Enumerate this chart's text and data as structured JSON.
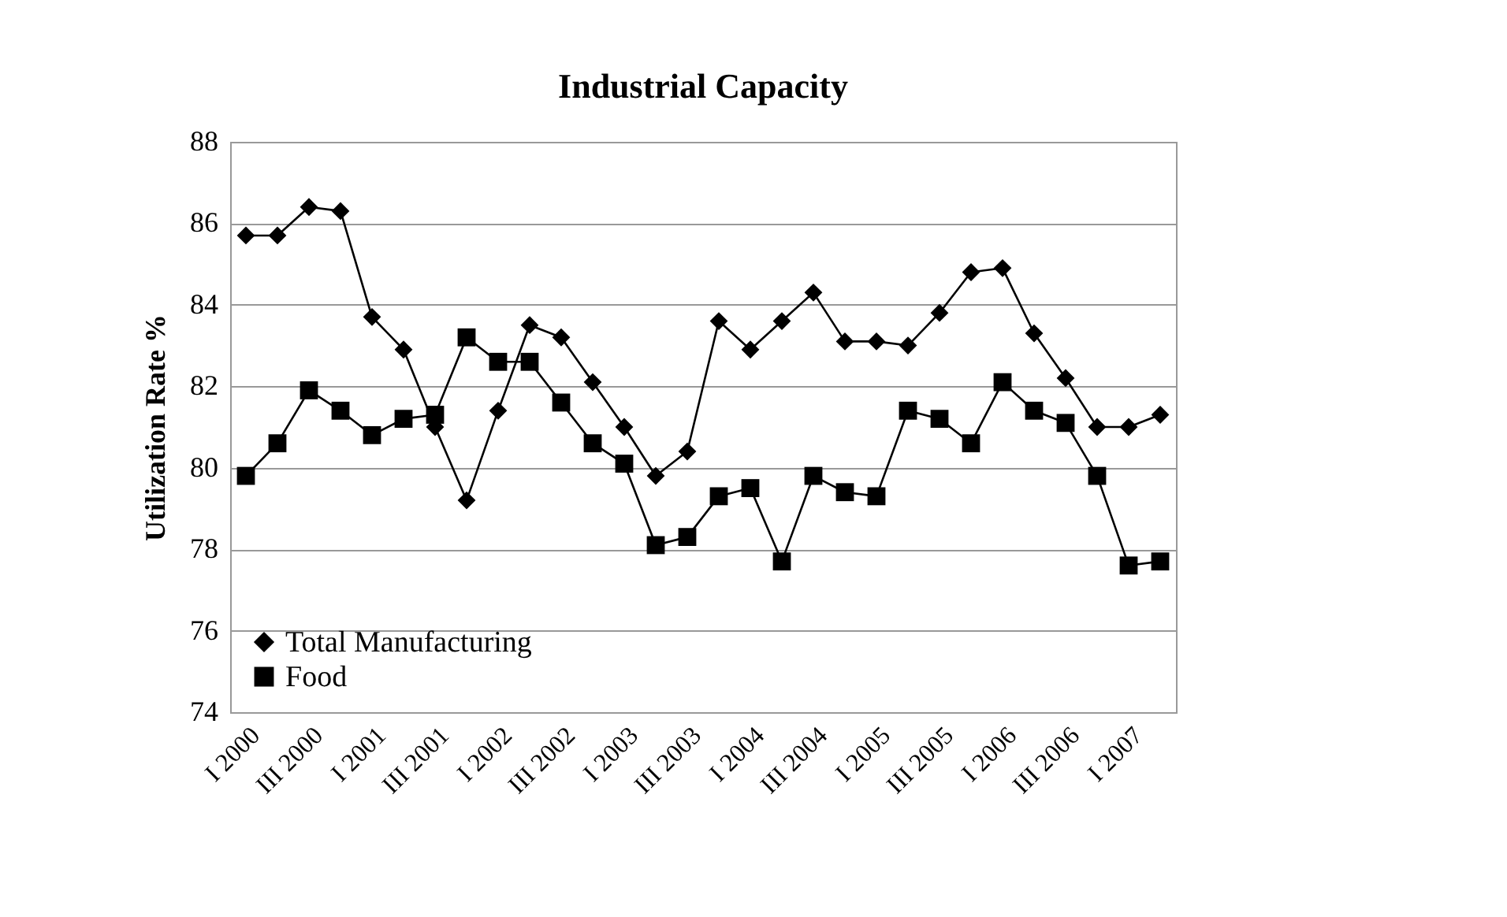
{
  "chart_data": {
    "type": "line",
    "title": "Industrial Capacity",
    "ylabel": "Utilization Rate %",
    "categories": [
      "I 2000",
      null,
      "III 2000",
      null,
      "I 2001",
      null,
      "III 2001",
      null,
      "I 2002",
      null,
      "III 2002",
      null,
      "I 2003",
      null,
      "III 2003",
      null,
      "I 2004",
      null,
      "III 2004",
      null,
      "I 2005",
      null,
      "III 2005",
      null,
      "I 2006",
      null,
      "III 2006",
      null,
      "I 2007",
      null
    ],
    "series": [
      {
        "name": "Total Manufacturing",
        "color": "#000000",
        "marker": "diamond",
        "values": [
          85.7,
          85.7,
          86.4,
          86.3,
          83.7,
          82.9,
          81.0,
          79.2,
          81.4,
          83.5,
          83.2,
          82.1,
          81.0,
          79.8,
          80.4,
          83.6,
          82.9,
          83.6,
          84.3,
          83.1,
          83.1,
          83.0,
          83.8,
          84.8,
          84.9,
          83.3,
          82.2,
          81.0,
          81.0,
          81.3
        ]
      },
      {
        "name": "Food",
        "color": "#000000",
        "marker": "square",
        "values": [
          79.8,
          80.6,
          81.9,
          81.4,
          80.8,
          81.2,
          81.3,
          83.2,
          82.6,
          82.6,
          81.6,
          80.6,
          80.1,
          78.1,
          78.3,
          79.3,
          79.5,
          77.7,
          79.8,
          79.4,
          79.3,
          81.4,
          81.2,
          80.6,
          82.1,
          81.4,
          81.1,
          79.8,
          77.6,
          77.7
        ]
      }
    ],
    "ylim": [
      74,
      88
    ],
    "yticks": [
      74,
      76,
      78,
      80,
      82,
      84,
      86,
      88
    ],
    "grid": "y",
    "legend": "bottom left",
    "line_style": "solid"
  }
}
